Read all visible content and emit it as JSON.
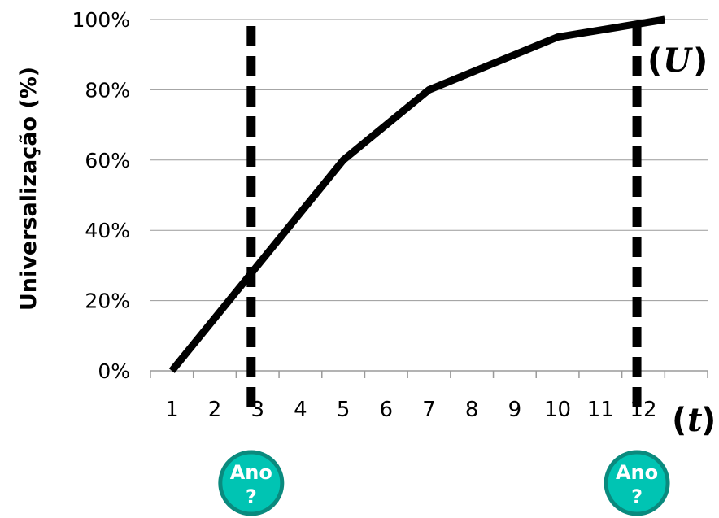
{
  "chart_data": {
    "type": "line",
    "ylabel": "Universalização (%)",
    "xlabel_var": "t",
    "series_var": "U",
    "ylim": [
      0,
      100
    ],
    "yticks": [
      "0%",
      "20%",
      "40%",
      "60%",
      "80%",
      "100%"
    ],
    "ytick_values": [
      0,
      20,
      40,
      60,
      80,
      100
    ],
    "xlim": [
      0.5,
      13.5
    ],
    "xticks": [
      "1",
      "2",
      "3",
      "4",
      "5",
      "6",
      "7",
      "8",
      "9",
      "10",
      "11",
      "12"
    ],
    "grid": "horizontal",
    "series": [
      {
        "color": "#000000",
        "x": [
          1,
          5,
          7,
          10,
          12.5
        ],
        "y": [
          0,
          60,
          80,
          95,
          100
        ]
      }
    ],
    "markers": [
      {
        "x": 2.85,
        "style": "dashed",
        "label_line1": "Ano",
        "label_line2": "?"
      },
      {
        "x": 11.85,
        "style": "dashed",
        "label_line1": "Ano",
        "label_line2": "?"
      }
    ],
    "badge_color": "#00c4b3",
    "badge_border": "#0a8a7e"
  }
}
